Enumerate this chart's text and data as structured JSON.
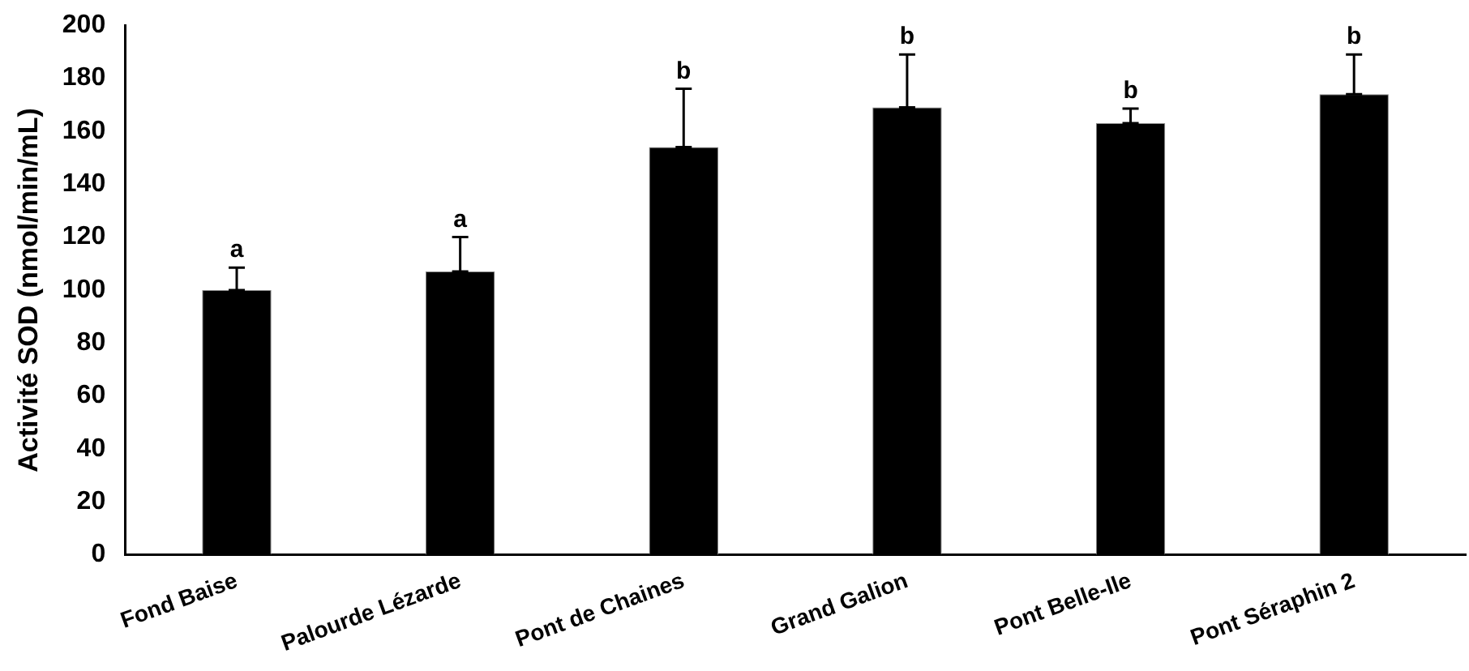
{
  "chart_data": {
    "type": "bar",
    "ylabel": "Activité SOD (nmol/min/mL)",
    "categories": [
      "Fond Baise",
      "Palourde Lézarde",
      "Pont de Chaines",
      "Grand Galion",
      "Pont Belle-Ile",
      "Pont Séraphin 2"
    ],
    "values": [
      100,
      107,
      154,
      169,
      163,
      174
    ],
    "errors": [
      [
        100,
        108.5
      ],
      [
        107,
        120
      ],
      [
        154,
        176
      ],
      [
        169,
        189
      ],
      [
        163,
        168.5
      ],
      [
        174,
        189
      ]
    ],
    "color": "#000000",
    "ylim": [
      0,
      200
    ],
    "yticks": [
      0,
      20,
      40,
      60,
      80,
      100,
      120,
      140,
      160,
      180,
      200
    ],
    "grid": false,
    "legend": false,
    "annotations": [
      {
        "text": "a",
        "x": "Fond Baise",
        "y": 108.5
      },
      {
        "text": "a",
        "x": "Palourde Lézarde",
        "y": 120
      },
      {
        "text": "b",
        "x": "Pont de Chaines",
        "y": 176
      },
      {
        "text": "b",
        "x": "Grand Galion",
        "y": 189
      },
      {
        "text": "b",
        "x": "Pont Belle-Ile",
        "y": 168.5
      },
      {
        "text": "b",
        "x": "Pont Séraphin 2",
        "y": 189
      }
    ]
  }
}
